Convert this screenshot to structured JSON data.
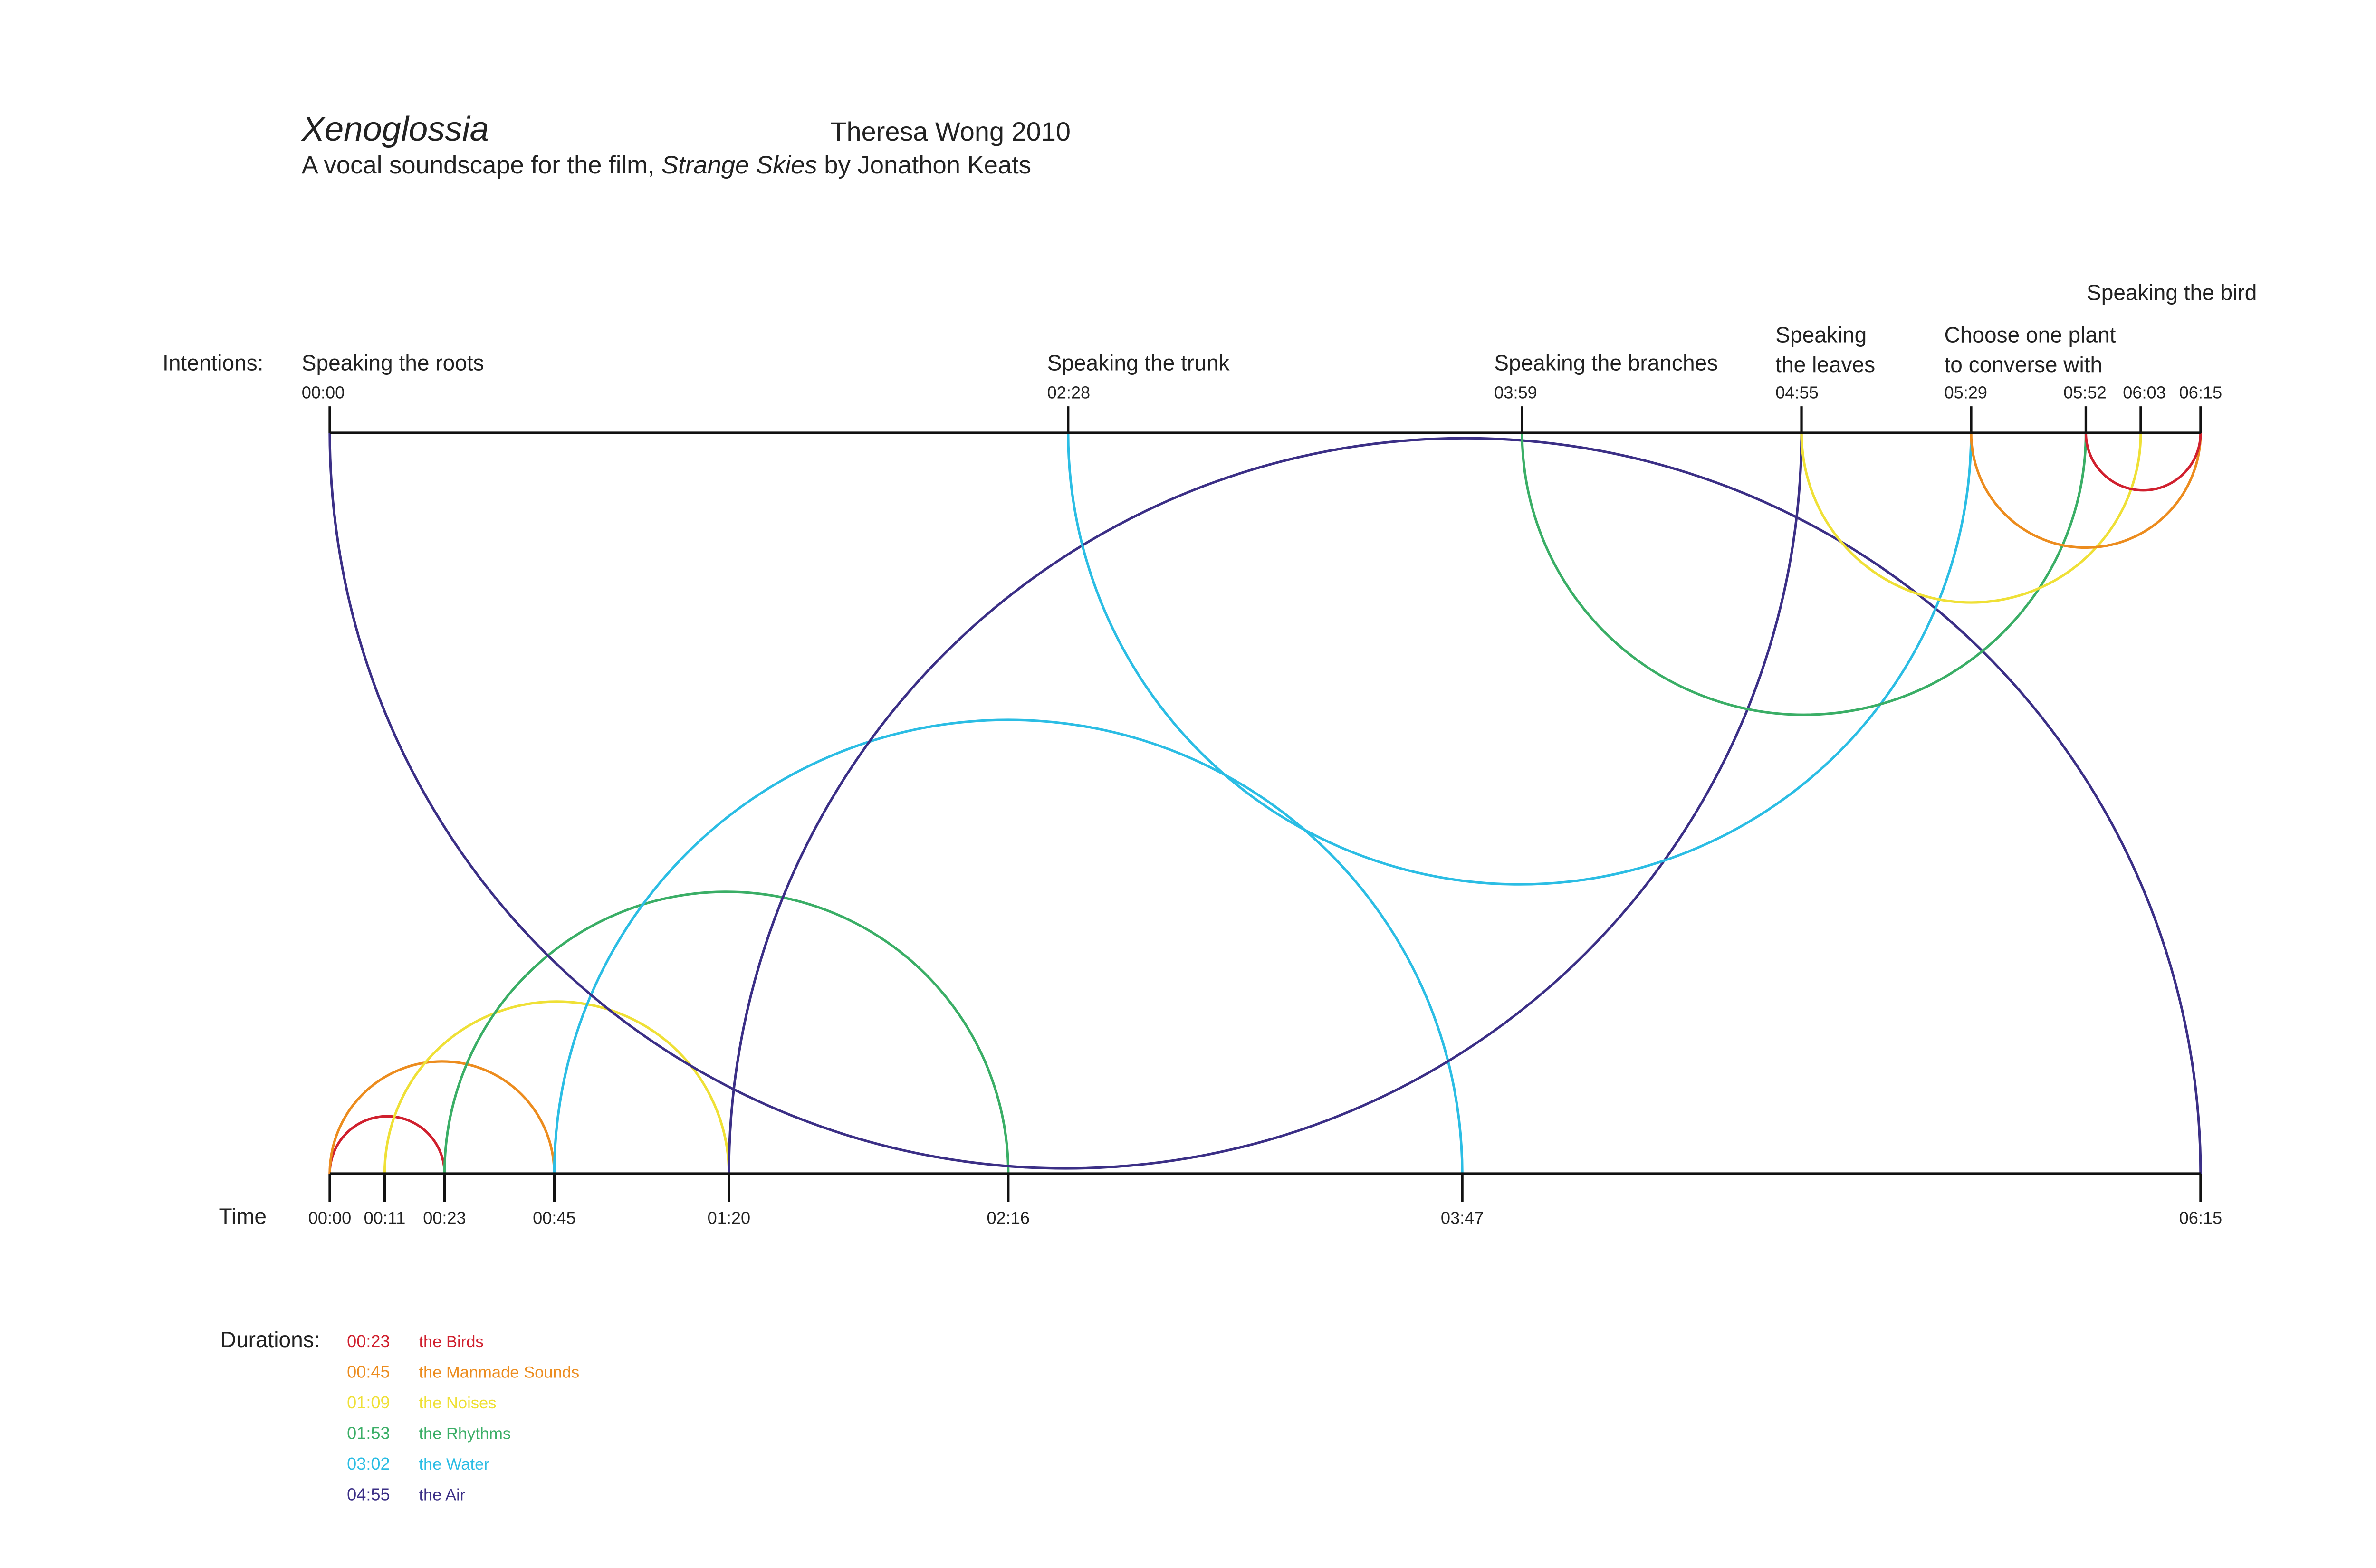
{
  "header": {
    "title": "Xenoglossia",
    "credit": "Theresa Wong 2010",
    "subtitle_before": "A vocal soundscape for the film, ",
    "subtitle_film": "Strange Skies",
    "subtitle_after": " by Jonathon Keats"
  },
  "intentions_label": "Intentions:",
  "time_label": "Time",
  "durations_label": "Durations:",
  "intentions": [
    {
      "time": "00:00",
      "label_lines": [
        "Speaking the roots"
      ]
    },
    {
      "time": "02:28",
      "label_lines": [
        "Speaking the trunk"
      ]
    },
    {
      "time": "03:59",
      "label_lines": [
        "Speaking the branches"
      ]
    },
    {
      "time": "04:55",
      "label_lines": [
        "Speaking",
        "the leaves"
      ]
    },
    {
      "time": "05:29",
      "label_lines": [
        "Choose one plant",
        "to converse with"
      ]
    },
    {
      "time": "05:52",
      "label_lines": []
    },
    {
      "time": "06:03",
      "label_lines": [
        "Speaking the bird"
      ]
    },
    {
      "time": "06:15",
      "label_lines": []
    }
  ],
  "time_ticks": [
    "00:00",
    "00:11",
    "00:23",
    "00:45",
    "01:20",
    "02:16",
    "03:47",
    "06:15"
  ],
  "voices": [
    {
      "duration": "00:23",
      "name": "the Birds",
      "color": "#d0202e"
    },
    {
      "duration": "00:45",
      "name": "the Manmade Sounds",
      "color": "#ec8c1e"
    },
    {
      "duration": "01:09",
      "name": "the Noises",
      "color": "#efe036"
    },
    {
      "duration": "01:53",
      "name": "the Rhythms",
      "color": "#3aae66"
    },
    {
      "duration": "03:02",
      "name": "the Water",
      "color": "#2bbde4"
    },
    {
      "duration": "04:55",
      "name": "the Air",
      "color": "#3b2f86"
    }
  ],
  "arcs": {
    "time_side": [
      {
        "voice": 0,
        "start": "00:00",
        "end": "00:23"
      },
      {
        "voice": 1,
        "start": "00:00",
        "end": "00:45"
      },
      {
        "voice": 2,
        "start": "00:11",
        "end": "01:20"
      },
      {
        "voice": 3,
        "start": "00:23",
        "end": "02:16"
      },
      {
        "voice": 4,
        "start": "00:45",
        "end": "03:47"
      },
      {
        "voice": 5,
        "start": "01:20",
        "end": "06:15"
      }
    ],
    "intention_side": [
      {
        "voice": 5,
        "start": "00:00",
        "end": "04:55"
      },
      {
        "voice": 4,
        "start": "02:28",
        "end": "05:29"
      },
      {
        "voice": 3,
        "start": "03:59",
        "end": "05:52"
      },
      {
        "voice": 2,
        "start": "04:55",
        "end": "06:03"
      },
      {
        "voice": 1,
        "start": "05:29",
        "end": "06:15"
      },
      {
        "voice": 0,
        "start": "05:52",
        "end": "06:15"
      }
    ]
  }
}
